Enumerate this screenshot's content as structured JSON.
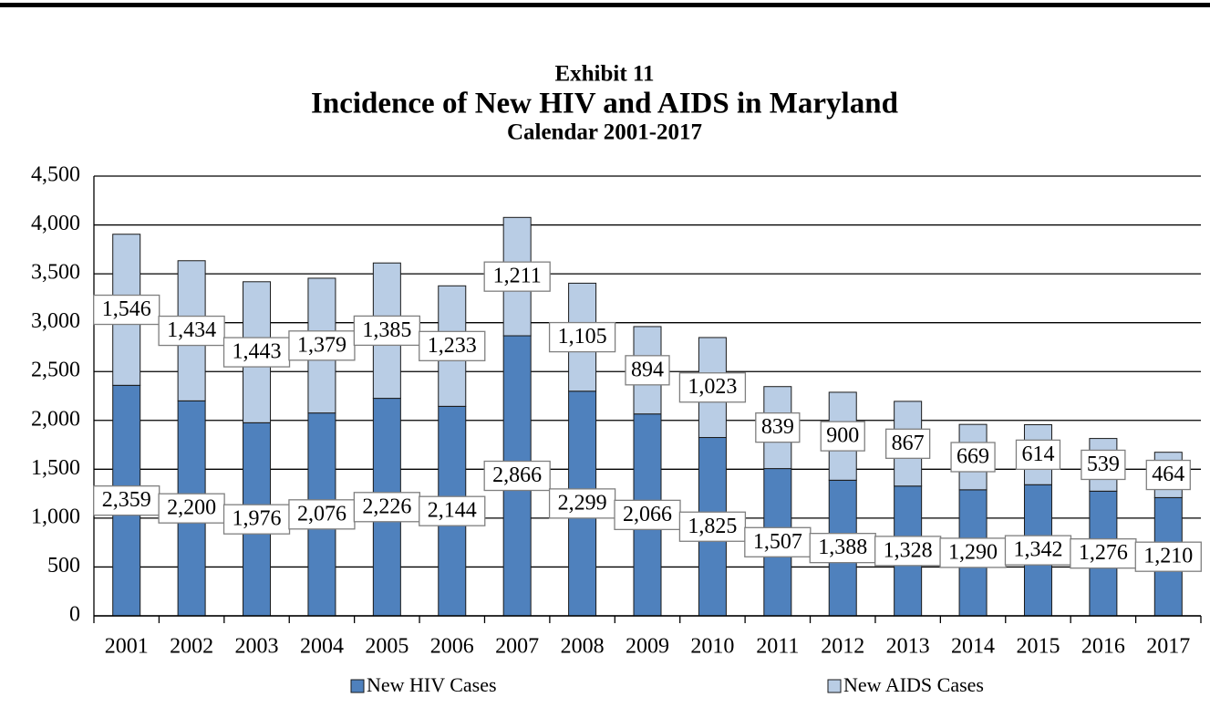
{
  "chart_data": {
    "type": "stacked-bar",
    "title": "Exhibit 11",
    "subtitle": "Incidence of New HIV and AIDS in Maryland",
    "caption": "Calendar 2001-2017",
    "categories": [
      "2001",
      "2002",
      "2003",
      "2004",
      "2005",
      "2006",
      "2007",
      "2008",
      "2009",
      "2010",
      "2011",
      "2012",
      "2013",
      "2014",
      "2015",
      "2016",
      "2017"
    ],
    "series": [
      {
        "name": "New HIV Cases",
        "color": "#4f81bd",
        "values": [
          2359,
          2200,
          1976,
          2076,
          2226,
          2144,
          2866,
          2299,
          2066,
          1825,
          1507,
          1388,
          1328,
          1290,
          1342,
          1276,
          1210
        ],
        "value_labels": [
          "2,359",
          "2,200",
          "1,976",
          "2,076",
          "2,226",
          "2,144",
          "2,866",
          "2,299",
          "2,066",
          "1,825",
          "1,507",
          "1,388",
          "1,328",
          "1,290",
          "1,342",
          "1,276",
          "1,210"
        ]
      },
      {
        "name": "New AIDS Cases",
        "color": "#b9cde5",
        "values": [
          1546,
          1434,
          1443,
          1379,
          1385,
          1233,
          1211,
          1105,
          894,
          1023,
          839,
          900,
          867,
          669,
          614,
          539,
          464
        ],
        "value_labels": [
          "1,546",
          "1,434",
          "1,443",
          "1,379",
          "1,385",
          "1,233",
          "1,211",
          "1,105",
          "894",
          "1,023",
          "839",
          "900",
          "867",
          "669",
          "614",
          "539",
          "464"
        ]
      }
    ],
    "ylim": [
      0,
      4500
    ],
    "yticks": [
      0,
      500,
      {
        "value": 1000,
        "label": "1,000"
      },
      {
        "value": 1500,
        "label": "1,500"
      },
      {
        "value": 2000,
        "label": "2,000"
      },
      {
        "value": 2500,
        "label": "2,500"
      },
      {
        "value": 3000,
        "label": "3,000"
      },
      {
        "value": 3500,
        "label": "3,500"
      },
      {
        "value": 4000,
        "label": "4,000"
      },
      {
        "value": 4500,
        "label": "4,500"
      }
    ],
    "grid": true,
    "legend": "bottom"
  }
}
